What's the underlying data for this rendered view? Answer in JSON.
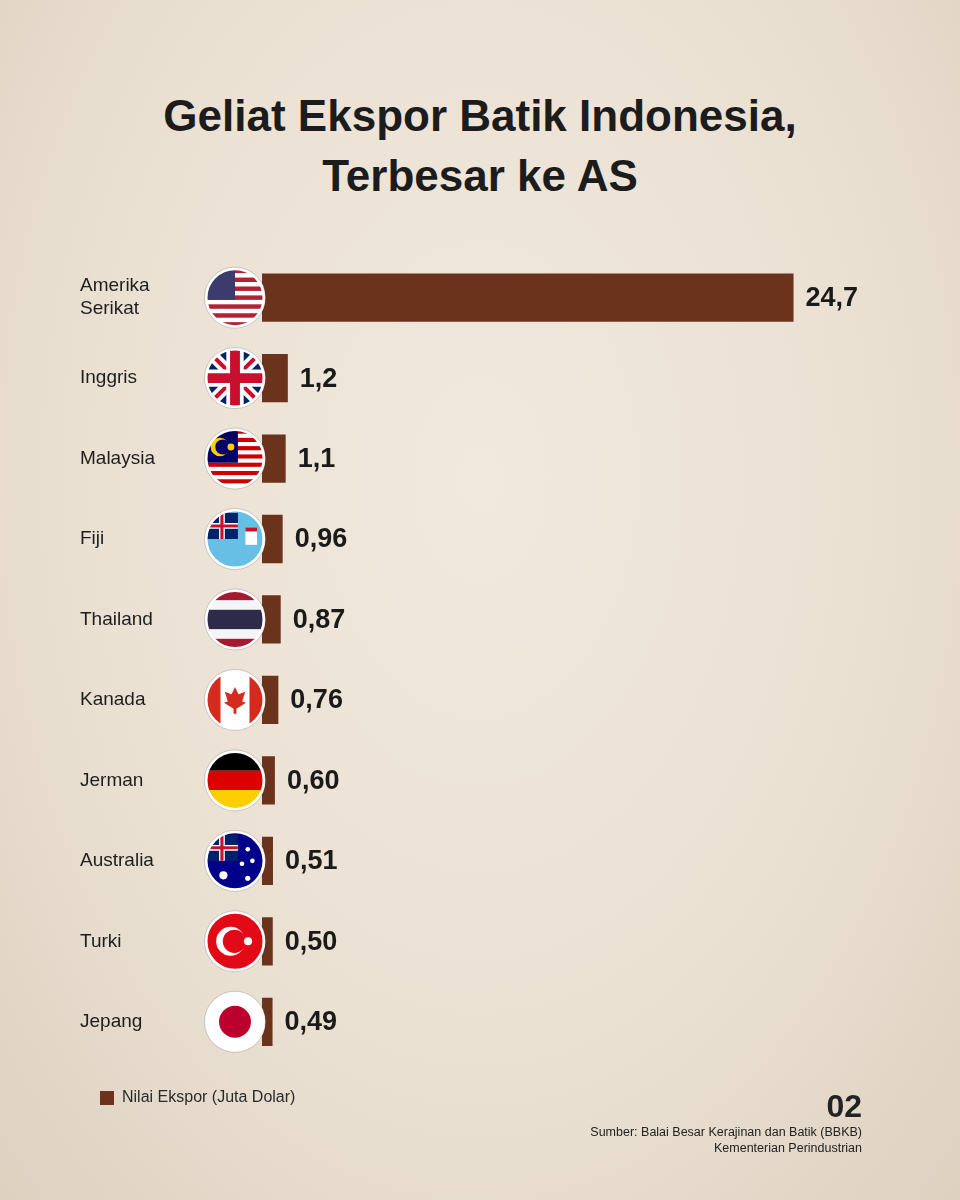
{
  "chart_data": {
    "type": "bar",
    "orientation": "horizontal",
    "title": [
      "Geliat Ekspor Batik Indonesia,",
      "Terbesar ke AS"
    ],
    "categories": [
      "Amerika Serikat",
      "Inggris",
      "Malaysia",
      "Fiji",
      "Thailand",
      "Kanada",
      "Jerman",
      "Australia",
      "Turki",
      "Jepang"
    ],
    "series": [
      {
        "name": "Nilai Ekspor (Juta Dolar)",
        "color": "#6b321c",
        "values": [
          24.7,
          1.2,
          1.1,
          0.96,
          0.87,
          0.76,
          0.6,
          0.51,
          0.5,
          0.49
        ],
        "value_labels": [
          "24,7",
          "1,2",
          "1,1",
          "0,96",
          "0,87",
          "0,76",
          "0,60",
          "0,51",
          "0,50",
          "0,49"
        ]
      }
    ],
    "xlim": [
      0,
      25
    ],
    "xticks": [
      0,
      25
    ],
    "grid": false,
    "tick_labels": "y",
    "legend": "bottom-left",
    "data_labels": true,
    "annotations": [
      "02",
      "Sumber: Balai Besar Kerajinan dan Batik (BBKB)",
      "Kementerian Perindustrian"
    ]
  }
}
